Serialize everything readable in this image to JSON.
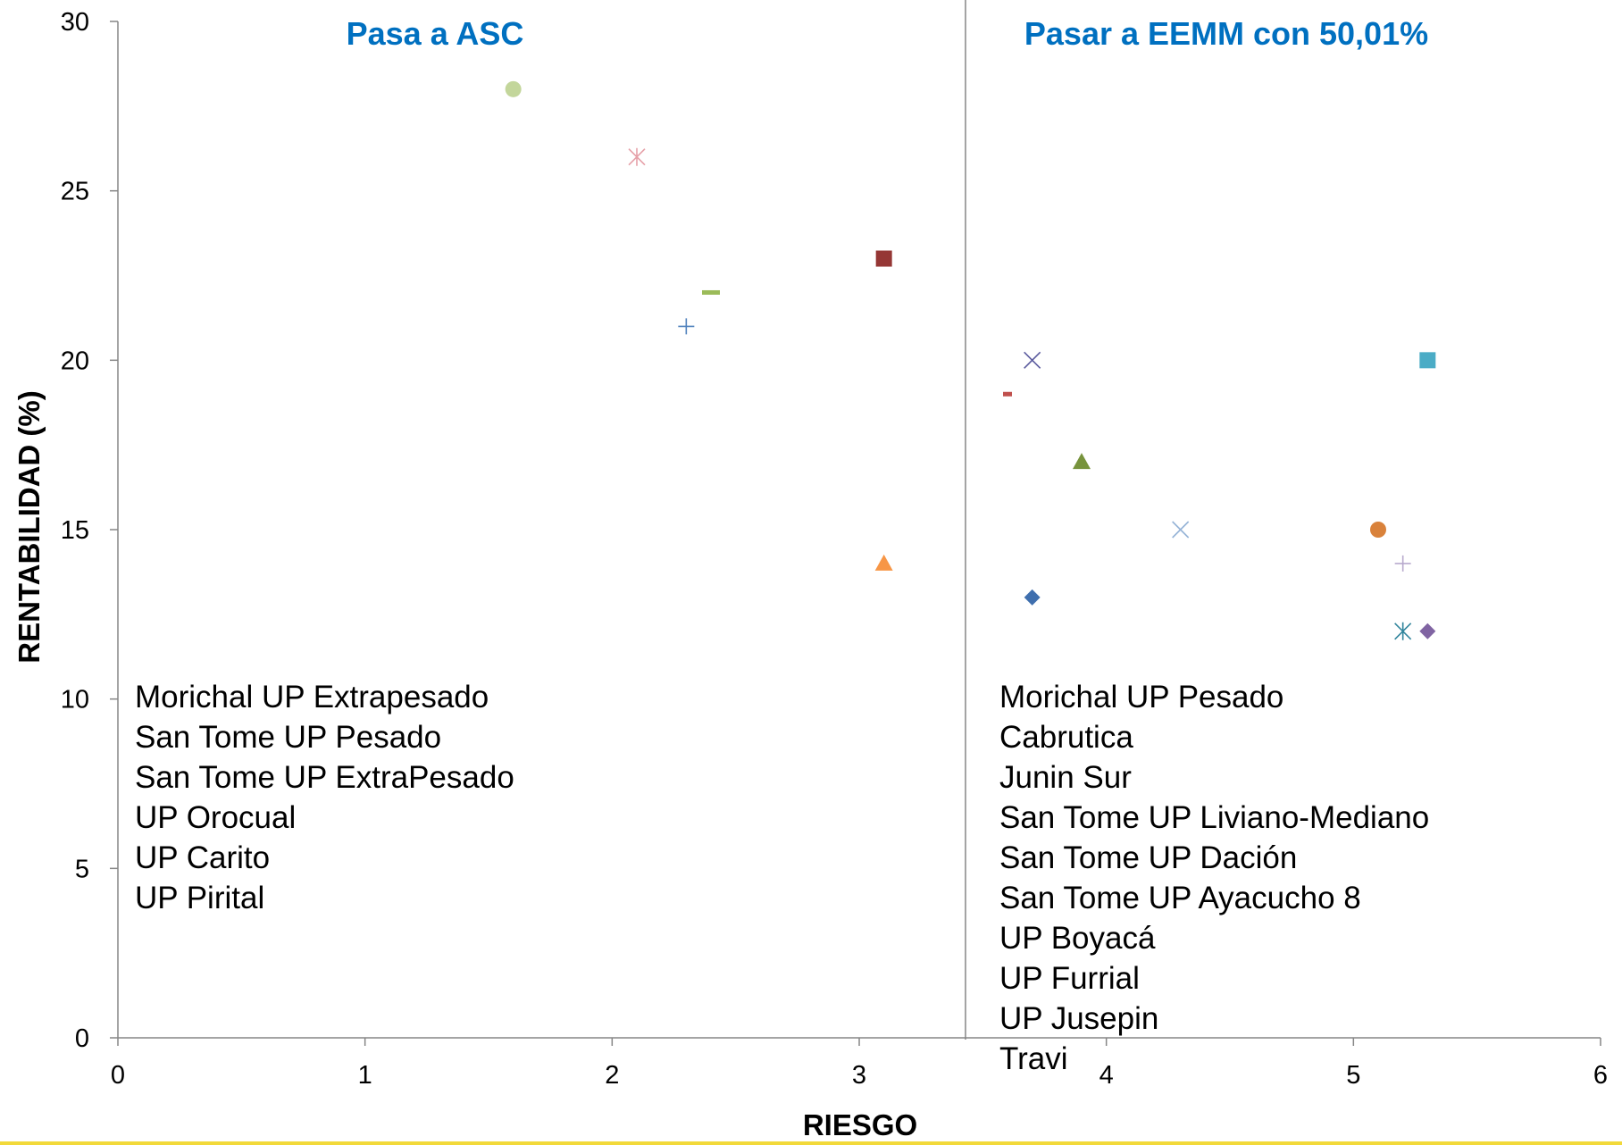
{
  "chart_data": {
    "type": "scatter",
    "xlabel": "RIESGO",
    "ylabel": "RENTABILIDAD (%)",
    "xlim": [
      0,
      6
    ],
    "ylim": [
      0,
      30
    ],
    "x_ticks": [
      "0",
      "1",
      "2",
      "3",
      "4",
      "5",
      "6"
    ],
    "y_ticks": [
      "0",
      "5",
      "10",
      "15",
      "20",
      "25",
      "30"
    ],
    "divider_x": 3.43,
    "grid": false,
    "legend": "none",
    "regions": [
      {
        "title": "Pasa a ASC",
        "title_color": "#0070C0",
        "items": [
          "Morichal UP Extrapesado",
          "San Tome UP Pesado",
          "San Tome UP ExtraPesado",
          "UP Orocual",
          "UP Carito",
          "UP Pirital"
        ]
      },
      {
        "title": "Pasar a EEMM con 50,01%",
        "title_color": "#0070C0",
        "items": [
          "Morichal UP Pesado",
          "Cabrutica",
          "Junin Sur",
          "San Tome UP Liviano-Mediano",
          "San Tome UP Dación",
          "San Tome UP Ayacucho 8",
          "UP Boyacá",
          "UP Furrial",
          "UP Jusepin",
          "Travi"
        ]
      }
    ],
    "points": [
      {
        "x": 1.6,
        "y": 28,
        "marker": "circle",
        "color": "#C3D69B"
      },
      {
        "x": 2.1,
        "y": 26,
        "marker": "star",
        "color": "#E6A0A8"
      },
      {
        "x": 3.1,
        "y": 23,
        "marker": "square",
        "color": "#953735"
      },
      {
        "x": 2.4,
        "y": 22,
        "marker": "dash",
        "color": "#9BBB59"
      },
      {
        "x": 2.3,
        "y": 21,
        "marker": "plus",
        "color": "#4F81BD"
      },
      {
        "x": 3.1,
        "y": 14,
        "marker": "triangle",
        "color": "#F79646"
      },
      {
        "x": 3.7,
        "y": 20,
        "marker": "x",
        "color": "#5A5A9E"
      },
      {
        "x": 3.6,
        "y": 19,
        "marker": "dash",
        "color": "#C0504D"
      },
      {
        "x": 3.9,
        "y": 17,
        "marker": "triangle",
        "color": "#77933C"
      },
      {
        "x": 4.3,
        "y": 15,
        "marker": "x",
        "color": "#95B3D7"
      },
      {
        "x": 3.7,
        "y": 13,
        "marker": "diamond",
        "color": "#3F6FAE"
      },
      {
        "x": 5.3,
        "y": 20,
        "marker": "square",
        "color": "#4BACC6"
      },
      {
        "x": 5.1,
        "y": 15,
        "marker": "circle",
        "color": "#D9823B"
      },
      {
        "x": 5.2,
        "y": 14,
        "marker": "plus",
        "color": "#B8AACD"
      },
      {
        "x": 5.2,
        "y": 12,
        "marker": "star",
        "color": "#31859C"
      },
      {
        "x": 5.3,
        "y": 12,
        "marker": "diamond",
        "color": "#8064A2"
      }
    ],
    "colors": {
      "axis": "#868686",
      "bottom_rule": "#F2D93A"
    }
  }
}
